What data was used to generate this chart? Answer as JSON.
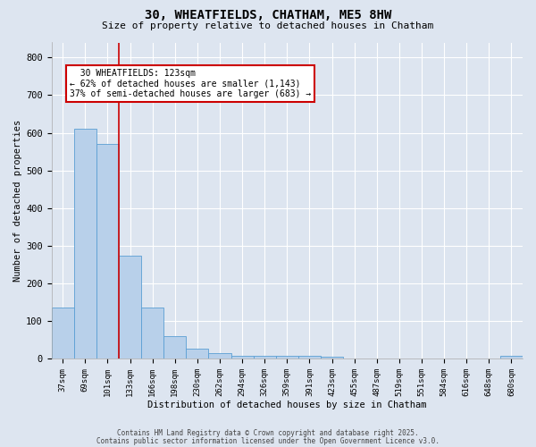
{
  "title1": "30, WHEATFIELDS, CHATHAM, ME5 8HW",
  "title2": "Size of property relative to detached houses in Chatham",
  "xlabel": "Distribution of detached houses by size in Chatham",
  "ylabel": "Number of detached properties",
  "categories": [
    "37sqm",
    "69sqm",
    "101sqm",
    "133sqm",
    "166sqm",
    "198sqm",
    "230sqm",
    "262sqm",
    "294sqm",
    "326sqm",
    "359sqm",
    "391sqm",
    "423sqm",
    "455sqm",
    "487sqm",
    "519sqm",
    "551sqm",
    "584sqm",
    "616sqm",
    "648sqm",
    "680sqm"
  ],
  "values": [
    135,
    610,
    570,
    275,
    135,
    60,
    28,
    15,
    8,
    8,
    8,
    8,
    5,
    0,
    0,
    0,
    0,
    0,
    0,
    0,
    8
  ],
  "bar_color": "#b8d0ea",
  "bar_edge_color": "#5a9fd4",
  "annotation_line1": "  30 WHEATFIELDS: 123sqm",
  "annotation_line2": "← 62% of detached houses are smaller (1,143)",
  "annotation_line3": "37% of semi-detached houses are larger (683) →",
  "annotation_box_color": "#ffffff",
  "annotation_box_edge": "#cc0000",
  "vline_color": "#cc0000",
  "vline_x_index": 2.5,
  "ylim": [
    0,
    840
  ],
  "yticks": [
    0,
    100,
    200,
    300,
    400,
    500,
    600,
    700,
    800
  ],
  "fig_bg": "#dde5f0",
  "plot_bg": "#dde5f0",
  "footer1": "Contains HM Land Registry data © Crown copyright and database right 2025.",
  "footer2": "Contains public sector information licensed under the Open Government Licence v3.0."
}
